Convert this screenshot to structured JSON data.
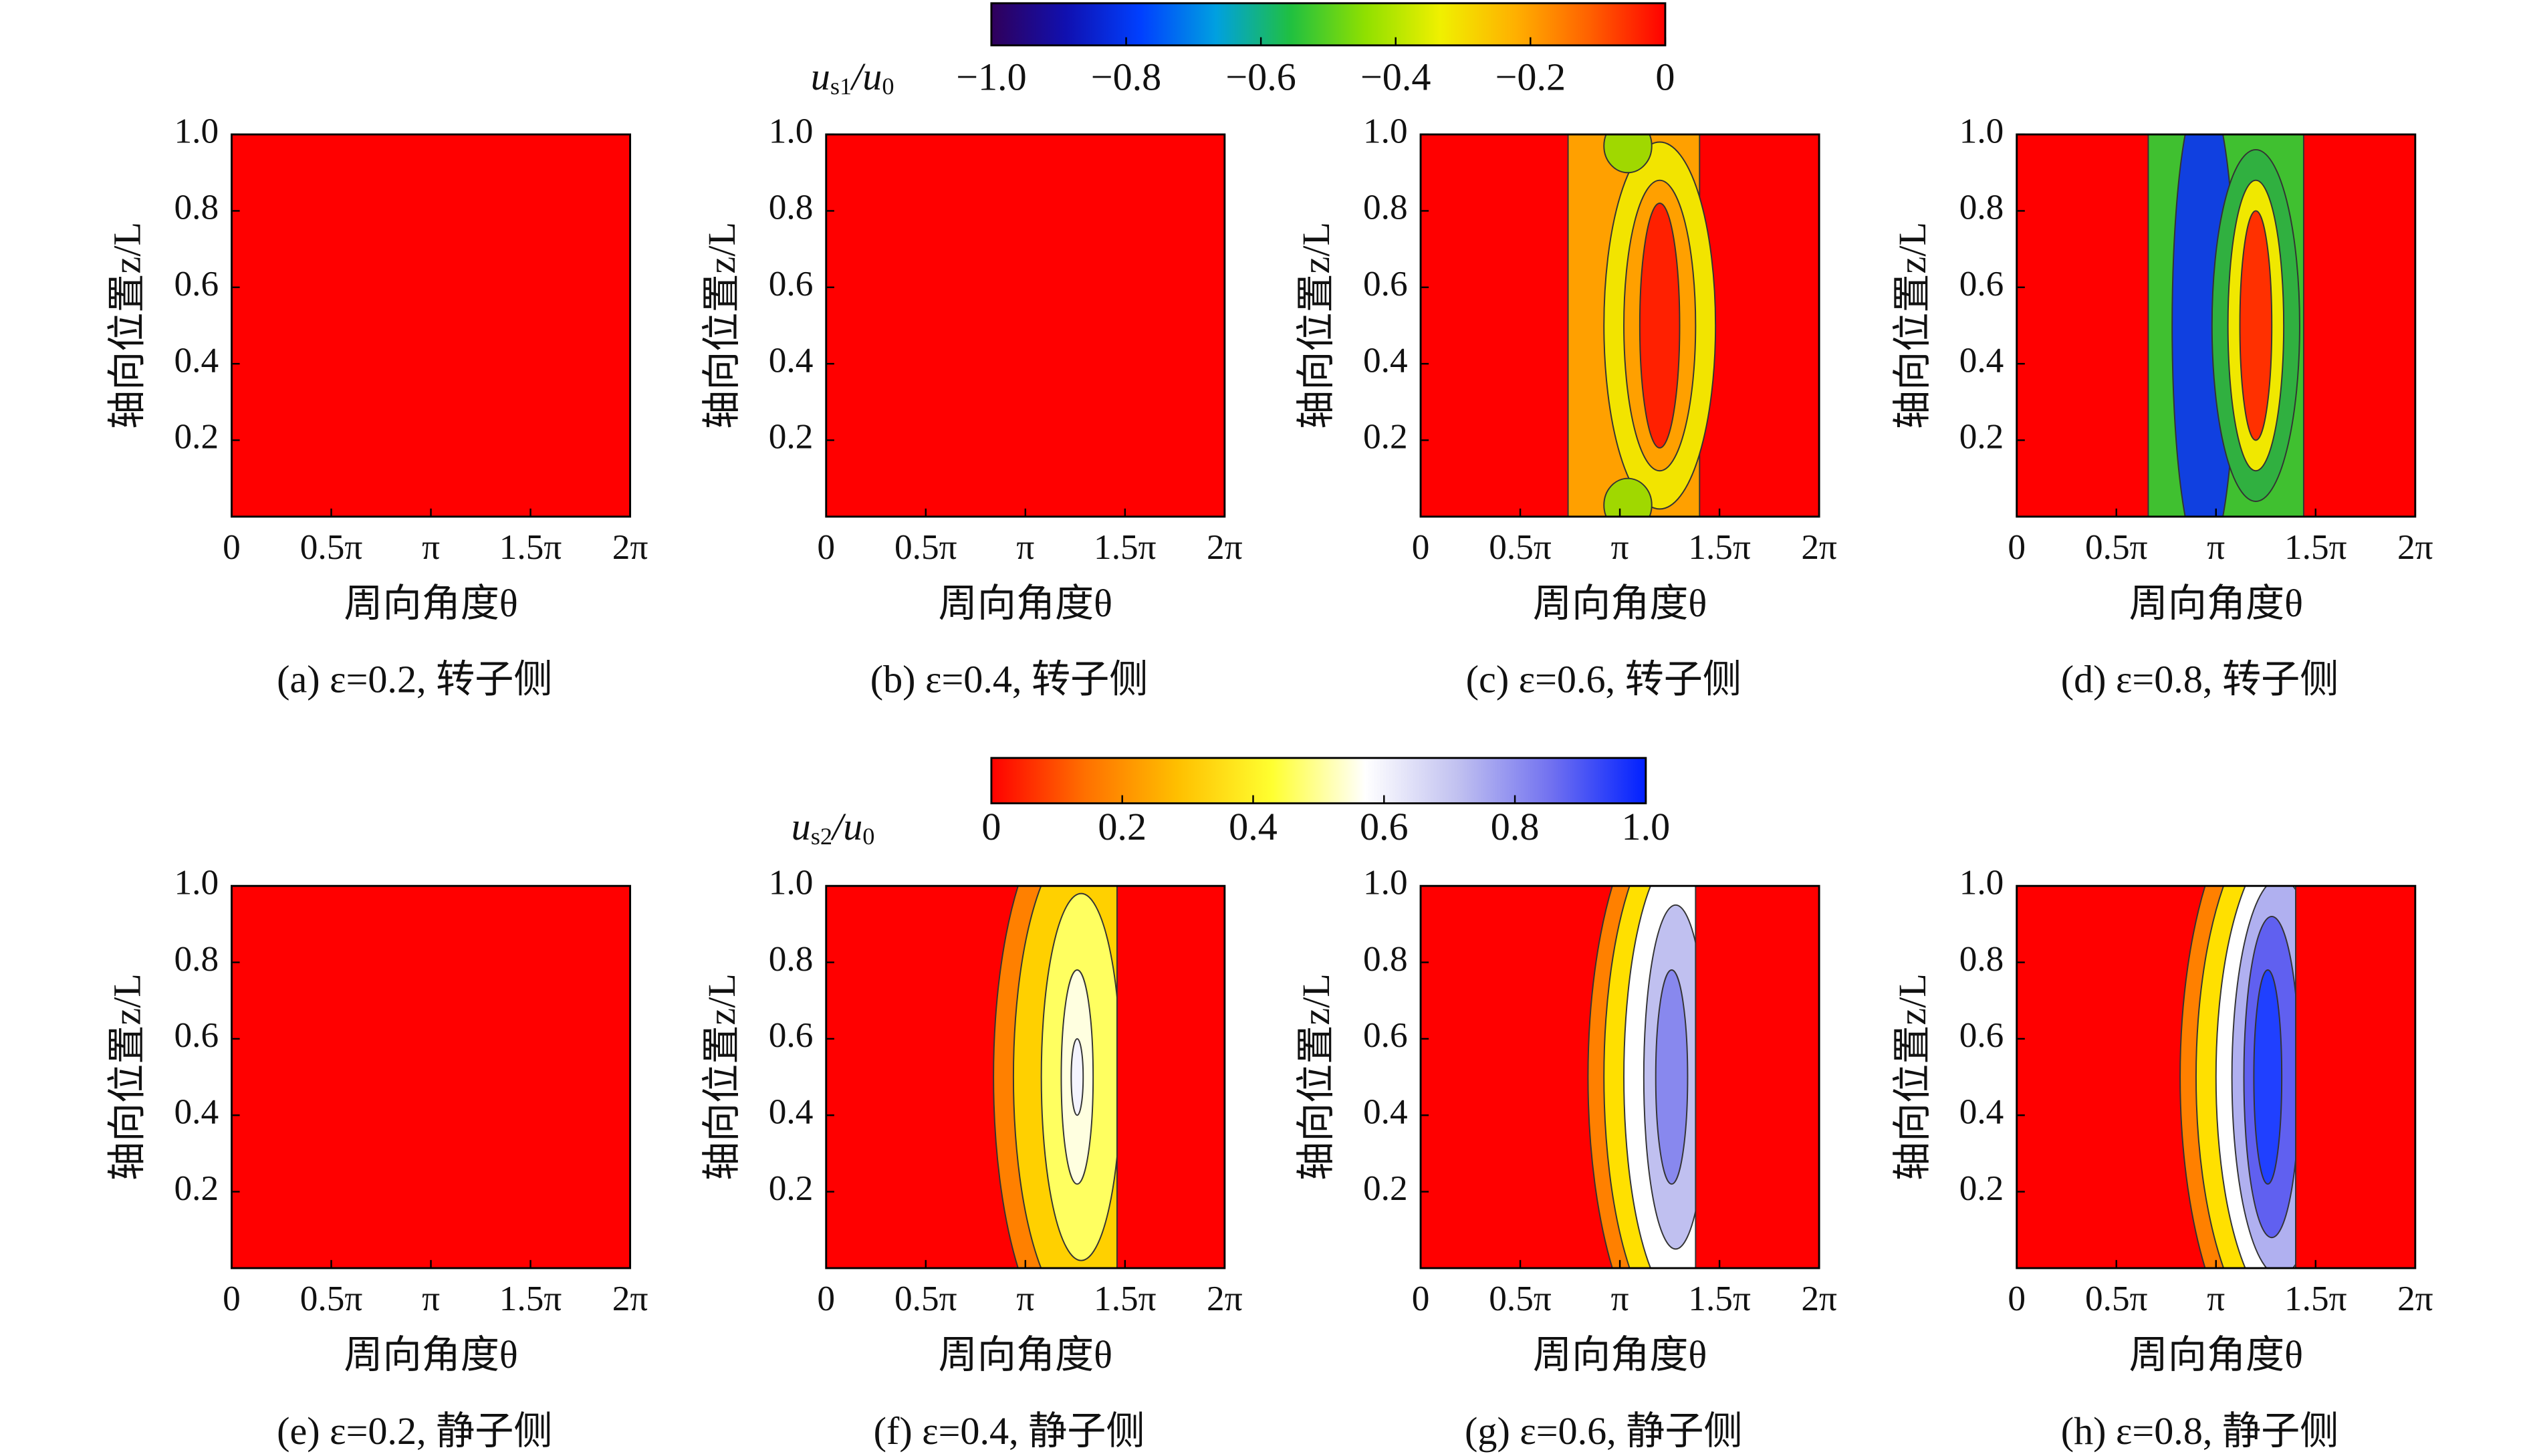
{
  "colorbars": [
    {
      "label": [
        "u",
        "s1",
        "/u",
        "0"
      ],
      "lim": [
        -1,
        0
      ],
      "ticks": [
        {
          "value": -1,
          "label": "−1.0"
        },
        {
          "value": -0.8,
          "label": "−0.8"
        },
        {
          "value": -0.6,
          "label": "−0.6"
        },
        {
          "value": -0.4,
          "label": "−0.4"
        },
        {
          "value": -0.2,
          "label": "−0.2"
        },
        0
      ],
      "colors": [
        "#30005a",
        "#1010b0",
        "#0040ff",
        "#00a0e0",
        "#20c040",
        "#90e000",
        "#f0f000",
        "#ffb000",
        "#ff6000",
        "#ff0000"
      ]
    },
    {
      "label": [
        "u",
        "s2",
        "/u",
        "0"
      ],
      "lim": [
        0,
        1
      ],
      "ticks": [
        0,
        0.2,
        0.4,
        0.6,
        0.8,
        {
          "value": 1,
          "label": "1.0"
        }
      ],
      "colors": [
        "#ff0000",
        "#ff7000",
        "#ffc000",
        "#ffff30",
        "#ffffff",
        "#c0c0f0",
        "#7070f0",
        "#0020ff"
      ]
    }
  ],
  "chart_data": [
    {
      "type": "contour",
      "caption": "(a) ε=0.2, 转子侧",
      "xlabel": "周向角度θ",
      "ylabel": "轴向位置z/L",
      "xlim": [
        0,
        6.283185307179586
      ],
      "ylim": [
        0,
        1
      ],
      "xticks": [
        0,
        {
          "value": 1.5707963267948966,
          "label": "0.5π"
        },
        {
          "value": 3.141592653589793,
          "label": "π"
        },
        {
          "value": 4.71238898038469,
          "label": "1.5π"
        },
        {
          "value": 6.283185307179586,
          "label": "2π"
        }
      ],
      "yticks": [
        0.2,
        0.4,
        0.6,
        0.8,
        {
          "value": 1,
          "label": "1.0"
        }
      ]
    },
    {
      "type": "contour",
      "caption": "(b) ε=0.4, 转子侧",
      "xlabel": "周向角度θ",
      "ylabel": "轴向位置z/L",
      "xlim": [
        0,
        6.283185307179586
      ],
      "ylim": [
        0,
        1
      ],
      "xticks": [
        0,
        {
          "value": 1.5707963267948966,
          "label": "0.5π"
        },
        {
          "value": 3.141592653589793,
          "label": "π"
        },
        {
          "value": 4.71238898038469,
          "label": "1.5π"
        },
        {
          "value": 6.283185307179586,
          "label": "2π"
        }
      ],
      "yticks": [
        0.2,
        0.4,
        0.6,
        0.8,
        {
          "value": 1,
          "label": "1.0"
        }
      ]
    },
    {
      "type": "contour",
      "caption": "(c) ε=0.6, 转子侧",
      "xlabel": "周向角度θ",
      "ylabel": "轴向位置z/L",
      "xlim": [
        0,
        6.283185307179586
      ],
      "ylim": [
        0,
        1
      ],
      "xticks": [
        0,
        {
          "value": 1.5707963267948966,
          "label": "0.5π"
        },
        {
          "value": 3.141592653589793,
          "label": "π"
        },
        {
          "value": 4.71238898038469,
          "label": "1.5π"
        },
        {
          "value": 6.283185307179586,
          "label": "2π"
        }
      ],
      "yticks": [
        0.2,
        0.4,
        0.6,
        0.8,
        {
          "value": 1,
          "label": "1.0"
        }
      ]
    },
    {
      "type": "contour",
      "caption": "(d) ε=0.8, 转子侧",
      "xlabel": "周向角度θ",
      "ylabel": "轴向位置z/L",
      "xlim": [
        0,
        6.283185307179586
      ],
      "ylim": [
        0,
        1
      ],
      "xticks": [
        0,
        {
          "value": 1.5707963267948966,
          "label": "0.5π"
        },
        {
          "value": 3.141592653589793,
          "label": "π"
        },
        {
          "value": 4.71238898038469,
          "label": "1.5π"
        },
        {
          "value": 6.283185307179586,
          "label": "2π"
        }
      ],
      "yticks": [
        0.2,
        0.4,
        0.6,
        0.8,
        {
          "value": 1,
          "label": "1.0"
        }
      ]
    },
    {
      "type": "contour",
      "caption": "(e) ε=0.2, 静子侧",
      "xlabel": "周向角度θ",
      "ylabel": "轴向位置z/L",
      "xlim": [
        0,
        6.283185307179586
      ],
      "ylim": [
        0,
        1
      ],
      "xticks": [
        0,
        {
          "value": 1.5707963267948966,
          "label": "0.5π"
        },
        {
          "value": 3.141592653589793,
          "label": "π"
        },
        {
          "value": 4.71238898038469,
          "label": "1.5π"
        },
        {
          "value": 6.283185307179586,
          "label": "2π"
        }
      ],
      "yticks": [
        0.2,
        0.4,
        0.6,
        0.8,
        {
          "value": 1,
          "label": "1.0"
        }
      ]
    },
    {
      "type": "contour",
      "caption": "(f) ε=0.4, 静子侧",
      "xlabel": "周向角度θ",
      "ylabel": "轴向位置z/L",
      "xlim": [
        0,
        6.283185307179586
      ],
      "ylim": [
        0,
        1
      ],
      "xticks": [
        0,
        {
          "value": 1.5707963267948966,
          "label": "0.5π"
        },
        {
          "value": 3.141592653589793,
          "label": "π"
        },
        {
          "value": 4.71238898038469,
          "label": "1.5π"
        },
        {
          "value": 6.283185307179586,
          "label": "2π"
        }
      ],
      "yticks": [
        0.2,
        0.4,
        0.6,
        0.8,
        {
          "value": 1,
          "label": "1.0"
        }
      ]
    },
    {
      "type": "contour",
      "caption": "(g) ε=0.6, 静子侧",
      "xlabel": "周向角度θ",
      "ylabel": "轴向位置z/L",
      "xlim": [
        0,
        6.283185307179586
      ],
      "ylim": [
        0,
        1
      ],
      "xticks": [
        0,
        {
          "value": 1.5707963267948966,
          "label": "0.5π"
        },
        {
          "value": 3.141592653589793,
          "label": "π"
        },
        {
          "value": 4.71238898038469,
          "label": "1.5π"
        },
        {
          "value": 6.283185307179586,
          "label": "2π"
        }
      ],
      "yticks": [
        0.2,
        0.4,
        0.6,
        0.8,
        {
          "value": 1,
          "label": "1.0"
        }
      ]
    },
    {
      "type": "contour",
      "caption": "(h) ε=0.8, 静子侧",
      "xlabel": "周向角度θ",
      "ylabel": "轴向位置z/L",
      "xlim": [
        0,
        6.283185307179586
      ],
      "ylim": [
        0,
        1
      ],
      "xticks": [
        0,
        {
          "value": 1.5707963267948966,
          "label": "0.5π"
        },
        {
          "value": 3.141592653589793,
          "label": "π"
        },
        {
          "value": 4.71238898038469,
          "label": "1.5π"
        },
        {
          "value": 6.283185307179586,
          "label": "2π"
        }
      ],
      "yticks": [
        0.2,
        0.4,
        0.6,
        0.8,
        {
          "value": 1,
          "label": "1.0"
        }
      ]
    }
  ]
}
